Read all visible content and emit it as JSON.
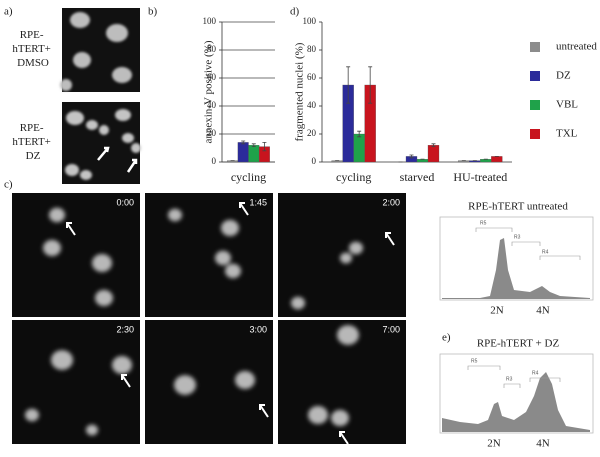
{
  "panel_a": {
    "label": "a)",
    "rows": [
      {
        "lines": [
          "RPE-",
          "hTERT+",
          "DMSO"
        ]
      },
      {
        "lines": [
          "RPE-",
          "hTERT+",
          "DZ"
        ]
      }
    ]
  },
  "panel_c": {
    "label": "c)",
    "times": [
      "0:00",
      "1:45",
      "2:00",
      "2:30",
      "3:00",
      "7:00"
    ]
  },
  "panel_e": {
    "label": "e)",
    "histograms": [
      {
        "title": "RPE-hTERT untreated",
        "gates": [
          "R5",
          "R3",
          "R4"
        ],
        "x_labels": [
          "2N",
          "4N"
        ]
      },
      {
        "title": "RPE-hTERT + DZ",
        "gates": [
          "R5",
          "R3",
          "R4"
        ],
        "x_labels": [
          "2N",
          "4N"
        ]
      }
    ]
  },
  "chart_data": [
    {
      "type": "bar",
      "panel": "b)",
      "y_label": "annexin-V positive (%)",
      "categories": [
        "cycling"
      ],
      "series": [
        {
          "color": "#8c8c8c",
          "values": [
            1
          ],
          "errors": [
            0
          ]
        },
        {
          "color": "#2b2b9a",
          "values": [
            14
          ],
          "errors": [
            1
          ]
        },
        {
          "color": "#1fa24a",
          "values": [
            12
          ],
          "errors": [
            1
          ]
        },
        {
          "color": "#c8141e",
          "values": [
            11
          ],
          "errors": [
            3
          ]
        }
      ],
      "ylim": [
        0,
        100
      ],
      "yticks": [
        0,
        20,
        40,
        60,
        80,
        100
      ],
      "grid": true
    },
    {
      "type": "bar",
      "panel": "d)",
      "y_label": "fragmented nuclei (%)",
      "categories": [
        "cycling",
        "starved",
        "HU-treated"
      ],
      "series": [
        {
          "name": "untreated",
          "color": "#8c8c8c",
          "values": [
            1,
            0,
            1
          ],
          "errors": [
            0,
            0,
            0
          ]
        },
        {
          "name": "DZ",
          "color": "#2b2b9a",
          "values": [
            55,
            4,
            1
          ],
          "errors": [
            13,
            1,
            0
          ]
        },
        {
          "name": "VBL",
          "color": "#1fa24a",
          "values": [
            20,
            2,
            2
          ],
          "errors": [
            2,
            0,
            0
          ]
        },
        {
          "name": "TXL",
          "color": "#c8141e",
          "values": [
            55,
            12,
            4
          ],
          "errors": [
            13,
            1,
            0
          ]
        }
      ],
      "ylim": [
        0,
        100
      ],
      "yticks": [
        0,
        20,
        40,
        60,
        80,
        100
      ],
      "grid": false,
      "legend": "right"
    }
  ]
}
